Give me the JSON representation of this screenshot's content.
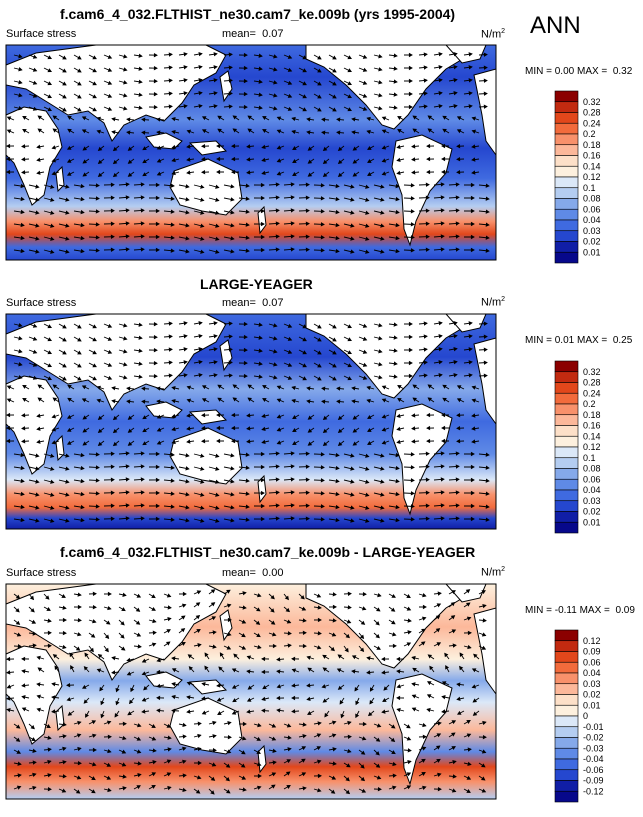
{
  "season": "ANN",
  "panels": [
    {
      "title": "f.cam6_4_032.FLTHIST_ne30.cam7_ke.009b (yrs 1995-2004)",
      "variable": "Surface stress",
      "mean_label": "mean=",
      "mean": "0.07",
      "units": "N/m",
      "units_exp": "2",
      "min_label": "MIN =",
      "min": "0.00",
      "max_label": "MAX =",
      "max": "0.32"
    },
    {
      "title": "LARGE-YEAGER",
      "variable": "Surface stress",
      "mean_label": "mean=",
      "mean": "0.07",
      "units": "N/m",
      "units_exp": "2",
      "min_label": "MIN =",
      "min": "0.01",
      "max_label": "MAX =",
      "max": "0.25"
    },
    {
      "title": "f.cam6_4_032.FLTHIST_ne30.cam7_ke.009b - LARGE-YEAGER",
      "variable": "Surface stress",
      "mean_label": "mean=",
      "mean": "0.00",
      "units": "N/m",
      "units_exp": "2",
      "min_label": "MIN =",
      "min": "-0.11",
      "max_label": "MAX =",
      "max": "0.09"
    }
  ],
  "chart_data": [
    {
      "type": "heatmap",
      "title": "f.cam6_4_032.FLTHIST_ne30.cam7_ke.009b (yrs 1995-2004)",
      "variable": "Surface stress",
      "units": "N/m2",
      "colorbar_levels": [
        "0.32",
        "0.28",
        "0.24",
        "0.2",
        "0.18",
        "0.16",
        "0.14",
        "0.12",
        "0.1",
        "0.08",
        "0.06",
        "0.04",
        "0.03",
        "0.02",
        "0.01"
      ],
      "colorbar_colors": [
        "#8b0000",
        "#c22a10",
        "#e2471b",
        "#f26b3c",
        "#f8916b",
        "#fcb89a",
        "#fde0c8",
        "#fdf0de",
        "#dbe8f8",
        "#b4cdf1",
        "#85a9ea",
        "#5f8ae6",
        "#3f6ae0",
        "#2547cf",
        "#101ea6",
        "#07088b"
      ]
    },
    {
      "type": "heatmap",
      "title": "LARGE-YEAGER",
      "variable": "Surface stress",
      "units": "N/m2",
      "colorbar_levels": [
        "0.32",
        "0.28",
        "0.24",
        "0.2",
        "0.18",
        "0.16",
        "0.14",
        "0.12",
        "0.1",
        "0.08",
        "0.06",
        "0.04",
        "0.03",
        "0.02",
        "0.01"
      ],
      "colorbar_colors": [
        "#8b0000",
        "#c22a10",
        "#e2471b",
        "#f26b3c",
        "#f8916b",
        "#fcb89a",
        "#fde0c8",
        "#fdf0de",
        "#dbe8f8",
        "#b4cdf1",
        "#85a9ea",
        "#5f8ae6",
        "#3f6ae0",
        "#2547cf",
        "#101ea6",
        "#07088b"
      ]
    },
    {
      "type": "heatmap",
      "title": "f.cam6_4_032.FLTHIST_ne30.cam7_ke.009b - LARGE-YEAGER",
      "variable": "Surface stress",
      "units": "N/m2",
      "colorbar_levels": [
        "0.12",
        "0.09",
        "0.06",
        "0.04",
        "0.03",
        "0.02",
        "0.01",
        "0",
        "-0.01",
        "-0.02",
        "-0.03",
        "-0.04",
        "-0.06",
        "-0.09",
        "-0.12"
      ],
      "colorbar_colors": [
        "#8b0000",
        "#c22a10",
        "#e2471b",
        "#f26b3c",
        "#f8916b",
        "#fcb89a",
        "#fde0c8",
        "#fdf0de",
        "#dbe8f8",
        "#b4cdf1",
        "#85a9ea",
        "#5f8ae6",
        "#3f6ae0",
        "#2547cf",
        "#101ea6",
        "#07088b"
      ]
    }
  ]
}
